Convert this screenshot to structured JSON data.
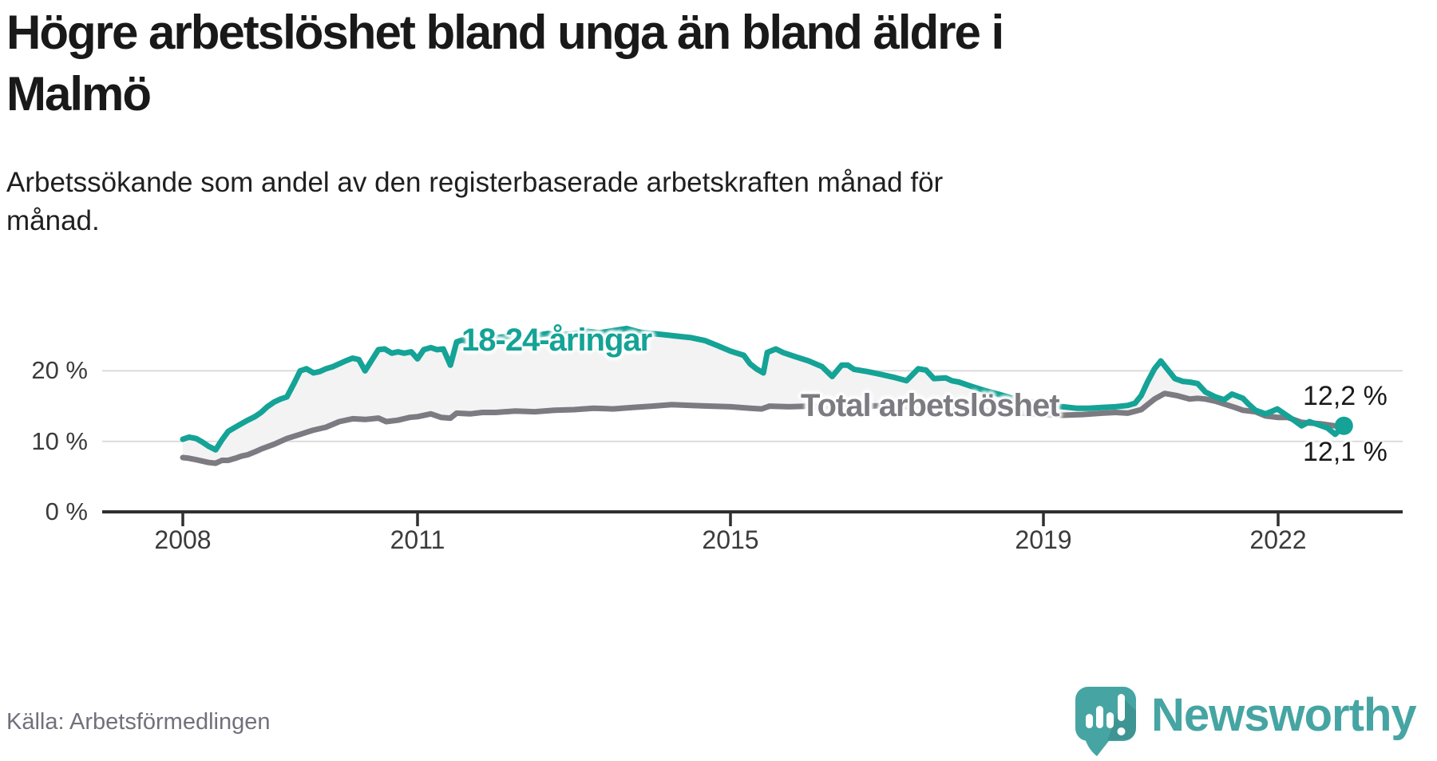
{
  "header": {
    "title_lines": [
      "Högre arbetslöshet bland unga än bland äldre i",
      "Malmö"
    ],
    "subtitle_lines": [
      "Arbetssökande som andel av den registerbaserade arbetskraften månad för",
      "månad."
    ]
  },
  "chart_data": {
    "type": "line",
    "title": "Högre arbetslöshet bland unga än bland äldre i Malmö",
    "subtitle": "Arbetssökande som andel av den registerbaserade arbetskraften månad för månad.",
    "unit": "%",
    "grid": true,
    "legend_position": "inline-labels",
    "band_fill": "#f3f3f3",
    "x_axis": {
      "label": "",
      "range": [
        2007.8,
        2023.2
      ],
      "ticks": [
        {
          "value": 2008,
          "label": "2008"
        },
        {
          "value": 2011,
          "label": "2011"
        },
        {
          "value": 2015,
          "label": "2015"
        },
        {
          "value": 2019,
          "label": "2019"
        },
        {
          "value": 2022,
          "label": "2022"
        }
      ]
    },
    "y_axis": {
      "label": "",
      "range": [
        0,
        27
      ],
      "ticks": [
        {
          "value": 0,
          "label": "0 %"
        },
        {
          "value": 10,
          "label": "10 %"
        },
        {
          "value": 20,
          "label": "20 %"
        }
      ]
    },
    "series": [
      {
        "name": "18-24-åringar",
        "color": "#14a396",
        "end_label": "12,2 %",
        "end_value": 12.2,
        "end_dot": true,
        "points": [
          [
            2008.0,
            10.3
          ],
          [
            2008.08,
            10.6
          ],
          [
            2008.17,
            10.4
          ],
          [
            2008.25,
            9.9
          ],
          [
            2008.33,
            9.3
          ],
          [
            2008.42,
            8.8
          ],
          [
            2008.5,
            10.2
          ],
          [
            2008.58,
            11.4
          ],
          [
            2008.67,
            12.0
          ],
          [
            2008.75,
            12.5
          ],
          [
            2008.83,
            13.0
          ],
          [
            2008.92,
            13.5
          ],
          [
            2009.0,
            14.1
          ],
          [
            2009.08,
            14.9
          ],
          [
            2009.17,
            15.6
          ],
          [
            2009.25,
            16.0
          ],
          [
            2009.33,
            16.3
          ],
          [
            2009.42,
            18.2
          ],
          [
            2009.5,
            20.0
          ],
          [
            2009.58,
            20.3
          ],
          [
            2009.67,
            19.7
          ],
          [
            2009.75,
            19.9
          ],
          [
            2009.83,
            20.3
          ],
          [
            2009.92,
            20.6
          ],
          [
            2010.0,
            21.0
          ],
          [
            2010.08,
            21.4
          ],
          [
            2010.17,
            21.8
          ],
          [
            2010.25,
            21.6
          ],
          [
            2010.33,
            20.0
          ],
          [
            2010.42,
            21.6
          ],
          [
            2010.5,
            23.0
          ],
          [
            2010.58,
            23.1
          ],
          [
            2010.67,
            22.5
          ],
          [
            2010.75,
            22.7
          ],
          [
            2010.83,
            22.5
          ],
          [
            2010.92,
            22.7
          ],
          [
            2011.0,
            21.7
          ],
          [
            2011.08,
            23.0
          ],
          [
            2011.17,
            23.3
          ],
          [
            2011.25,
            23.0
          ],
          [
            2011.33,
            23.1
          ],
          [
            2011.42,
            20.8
          ],
          [
            2011.5,
            24.1
          ],
          [
            2011.58,
            24.4
          ],
          [
            2011.67,
            23.9
          ],
          [
            2011.75,
            23.6
          ],
          [
            2011.83,
            24.2
          ],
          [
            2011.92,
            24.5
          ],
          [
            2012.0,
            24.7
          ],
          [
            2012.17,
            24.9
          ],
          [
            2012.33,
            24.6
          ],
          [
            2012.5,
            25.0
          ],
          [
            2012.67,
            25.3
          ],
          [
            2012.83,
            25.1
          ],
          [
            2013.0,
            25.3
          ],
          [
            2013.17,
            25.6
          ],
          [
            2013.33,
            25.4
          ],
          [
            2013.5,
            25.7
          ],
          [
            2013.67,
            26.0
          ],
          [
            2013.83,
            25.5
          ],
          [
            2014.0,
            25.3
          ],
          [
            2014.17,
            25.1
          ],
          [
            2014.33,
            24.9
          ],
          [
            2014.5,
            24.7
          ],
          [
            2014.67,
            24.3
          ],
          [
            2014.83,
            23.6
          ],
          [
            2015.0,
            22.8
          ],
          [
            2015.17,
            22.2
          ],
          [
            2015.25,
            21.0
          ],
          [
            2015.33,
            20.3
          ],
          [
            2015.42,
            19.7
          ],
          [
            2015.47,
            22.6
          ],
          [
            2015.58,
            23.1
          ],
          [
            2015.67,
            22.6
          ],
          [
            2015.83,
            22.0
          ],
          [
            2016.0,
            21.4
          ],
          [
            2016.17,
            20.6
          ],
          [
            2016.3,
            19.2
          ],
          [
            2016.42,
            20.8
          ],
          [
            2016.5,
            20.8
          ],
          [
            2016.58,
            20.2
          ],
          [
            2016.75,
            19.9
          ],
          [
            2016.92,
            19.5
          ],
          [
            2017.08,
            19.1
          ],
          [
            2017.25,
            18.6
          ],
          [
            2017.4,
            20.3
          ],
          [
            2017.5,
            20.1
          ],
          [
            2017.6,
            18.9
          ],
          [
            2017.75,
            19.0
          ],
          [
            2017.83,
            18.6
          ],
          [
            2017.92,
            18.4
          ],
          [
            2018.08,
            17.8
          ],
          [
            2018.25,
            17.2
          ],
          [
            2018.42,
            16.7
          ],
          [
            2018.58,
            16.2
          ],
          [
            2018.75,
            15.8
          ],
          [
            2018.92,
            15.4
          ],
          [
            2019.08,
            15.1
          ],
          [
            2019.25,
            14.9
          ],
          [
            2019.42,
            14.7
          ],
          [
            2019.58,
            14.7
          ],
          [
            2019.75,
            14.8
          ],
          [
            2019.92,
            14.9
          ],
          [
            2020.08,
            15.1
          ],
          [
            2020.17,
            15.4
          ],
          [
            2020.25,
            16.5
          ],
          [
            2020.33,
            18.4
          ],
          [
            2020.42,
            20.3
          ],
          [
            2020.5,
            21.4
          ],
          [
            2020.58,
            20.3
          ],
          [
            2020.68,
            18.9
          ],
          [
            2020.78,
            18.5
          ],
          [
            2020.87,
            18.4
          ],
          [
            2020.97,
            18.2
          ],
          [
            2021.07,
            17.0
          ],
          [
            2021.2,
            16.3
          ],
          [
            2021.31,
            15.9
          ],
          [
            2021.41,
            16.7
          ],
          [
            2021.55,
            16.1
          ],
          [
            2021.63,
            15.2
          ],
          [
            2021.71,
            14.4
          ],
          [
            2021.84,
            13.9
          ],
          [
            2021.93,
            14.3
          ],
          [
            2021.99,
            14.6
          ],
          [
            2022.12,
            13.6
          ],
          [
            2022.2,
            13.0
          ],
          [
            2022.3,
            12.2
          ],
          [
            2022.4,
            12.8
          ],
          [
            2022.53,
            12.3
          ],
          [
            2022.63,
            11.9
          ],
          [
            2022.73,
            11.0
          ],
          [
            2022.84,
            12.2
          ]
        ]
      },
      {
        "name": "Total arbetslöshet",
        "color": "#7b7b81",
        "end_label": "12,1 %",
        "end_value": 12.1,
        "end_dot": false,
        "points": [
          [
            2008.0,
            7.7
          ],
          [
            2008.08,
            7.6
          ],
          [
            2008.17,
            7.4
          ],
          [
            2008.25,
            7.2
          ],
          [
            2008.33,
            7.0
          ],
          [
            2008.42,
            6.9
          ],
          [
            2008.5,
            7.3
          ],
          [
            2008.58,
            7.3
          ],
          [
            2008.67,
            7.6
          ],
          [
            2008.75,
            7.9
          ],
          [
            2008.83,
            8.1
          ],
          [
            2008.92,
            8.5
          ],
          [
            2009.0,
            8.9
          ],
          [
            2009.17,
            9.6
          ],
          [
            2009.33,
            10.4
          ],
          [
            2009.5,
            11.0
          ],
          [
            2009.67,
            11.6
          ],
          [
            2009.83,
            12.0
          ],
          [
            2010.0,
            12.8
          ],
          [
            2010.17,
            13.2
          ],
          [
            2010.33,
            13.1
          ],
          [
            2010.5,
            13.3
          ],
          [
            2010.6,
            12.8
          ],
          [
            2010.75,
            13.0
          ],
          [
            2010.9,
            13.4
          ],
          [
            2011.0,
            13.5
          ],
          [
            2011.17,
            13.9
          ],
          [
            2011.3,
            13.4
          ],
          [
            2011.42,
            13.3
          ],
          [
            2011.5,
            14.0
          ],
          [
            2011.67,
            13.9
          ],
          [
            2011.83,
            14.1
          ],
          [
            2012.0,
            14.1
          ],
          [
            2012.25,
            14.3
          ],
          [
            2012.5,
            14.2
          ],
          [
            2012.75,
            14.4
          ],
          [
            2013.0,
            14.5
          ],
          [
            2013.25,
            14.7
          ],
          [
            2013.5,
            14.6
          ],
          [
            2013.75,
            14.8
          ],
          [
            2014.0,
            15.0
          ],
          [
            2014.25,
            15.2
          ],
          [
            2014.5,
            15.1
          ],
          [
            2014.75,
            15.0
          ],
          [
            2015.0,
            14.9
          ],
          [
            2015.25,
            14.7
          ],
          [
            2015.4,
            14.6
          ],
          [
            2015.5,
            15.0
          ],
          [
            2015.75,
            14.9
          ],
          [
            2016.0,
            15.0
          ],
          [
            2016.25,
            14.8
          ],
          [
            2016.5,
            15.1
          ],
          [
            2016.75,
            15.0
          ],
          [
            2017.0,
            15.1
          ],
          [
            2017.25,
            14.9
          ],
          [
            2017.5,
            15.0
          ],
          [
            2017.75,
            14.8
          ],
          [
            2018.0,
            14.6
          ],
          [
            2018.25,
            14.4
          ],
          [
            2018.5,
            14.2
          ],
          [
            2018.75,
            14.0
          ],
          [
            2019.0,
            13.8
          ],
          [
            2019.25,
            13.7
          ],
          [
            2019.5,
            13.8
          ],
          [
            2019.75,
            14.0
          ],
          [
            2019.92,
            14.1
          ],
          [
            2020.08,
            14.0
          ],
          [
            2020.25,
            14.5
          ],
          [
            2020.42,
            16.0
          ],
          [
            2020.55,
            16.8
          ],
          [
            2020.7,
            16.5
          ],
          [
            2020.87,
            16.0
          ],
          [
            2020.97,
            16.1
          ],
          [
            2021.07,
            16.0
          ],
          [
            2021.2,
            15.7
          ],
          [
            2021.31,
            15.3
          ],
          [
            2021.45,
            14.8
          ],
          [
            2021.55,
            14.4
          ],
          [
            2021.71,
            14.2
          ],
          [
            2021.84,
            13.6
          ],
          [
            2021.99,
            13.4
          ],
          [
            2022.12,
            13.4
          ],
          [
            2022.3,
            12.7
          ],
          [
            2022.4,
            12.6
          ],
          [
            2022.53,
            12.5
          ],
          [
            2022.73,
            12.2
          ],
          [
            2022.84,
            12.1
          ]
        ]
      }
    ]
  },
  "source": {
    "label": "Källa: Arbetsförmedlingen"
  },
  "branding": {
    "name": "Newsworthy",
    "color": "#46a5a3",
    "icon": "speech-bubble-bar-chart-exclamation"
  }
}
